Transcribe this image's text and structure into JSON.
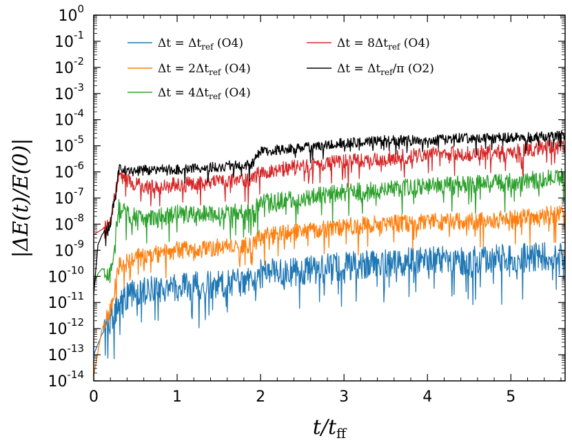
{
  "chart_data": {
    "type": "line",
    "title": "",
    "xlabel": "t/t_ff",
    "ylabel": "|ΔE(t)/E(0)|",
    "x_range": [
      0,
      5.65
    ],
    "y_scale": "log",
    "y_range_exponent": [
      -14,
      0
    ],
    "x_ticks": [
      "0",
      "1",
      "2",
      "3",
      "4",
      "5"
    ],
    "y_ticks": [
      {
        "base": "10",
        "exp": "0"
      },
      {
        "base": "10",
        "exp": "-1"
      },
      {
        "base": "10",
        "exp": "-2"
      },
      {
        "base": "10",
        "exp": "-3"
      },
      {
        "base": "10",
        "exp": "-4"
      },
      {
        "base": "10",
        "exp": "-5"
      },
      {
        "base": "10",
        "exp": "-6"
      },
      {
        "base": "10",
        "exp": "-7"
      },
      {
        "base": "10",
        "exp": "-8"
      },
      {
        "base": "10",
        "exp": "-9"
      },
      {
        "base": "10",
        "exp": "-10"
      },
      {
        "base": "10",
        "exp": "-11"
      },
      {
        "base": "10",
        "exp": "-12"
      },
      {
        "base": "10",
        "exp": "-13"
      },
      {
        "base": "10",
        "exp": "-14"
      }
    ],
    "grid": false,
    "legend": "top",
    "series": [
      {
        "name": "Δt = Δt_ref (O4)",
        "color": "#1f77b4",
        "noise": 0.55,
        "points": [
          [
            0.0,
            -13.0
          ],
          [
            0.05,
            -12.6
          ],
          [
            0.1,
            -12.2
          ],
          [
            0.2,
            -11.8
          ],
          [
            0.3,
            -11.0
          ],
          [
            0.45,
            -10.7
          ],
          [
            0.7,
            -10.5
          ],
          [
            1.0,
            -10.4
          ],
          [
            1.5,
            -10.3
          ],
          [
            1.9,
            -10.2
          ],
          [
            2.0,
            -9.9
          ],
          [
            2.5,
            -9.8
          ],
          [
            3.0,
            -9.6
          ],
          [
            3.5,
            -9.5
          ],
          [
            4.0,
            -9.4
          ],
          [
            4.5,
            -9.4
          ],
          [
            5.0,
            -9.3
          ],
          [
            5.65,
            -9.2
          ]
        ]
      },
      {
        "name": "Δt = 2Δt_ref (O4)",
        "color": "#ff7f0e",
        "noise": 0.35,
        "points": [
          [
            0.0,
            -13.8
          ],
          [
            0.05,
            -12.9
          ],
          [
            0.1,
            -12.0
          ],
          [
            0.2,
            -11.3
          ],
          [
            0.3,
            -9.6
          ],
          [
            0.45,
            -9.3
          ],
          [
            0.7,
            -9.2
          ],
          [
            1.0,
            -9.0
          ],
          [
            1.5,
            -8.9
          ],
          [
            1.9,
            -8.8
          ],
          [
            2.0,
            -8.5
          ],
          [
            2.5,
            -8.3
          ],
          [
            3.0,
            -8.1
          ],
          [
            3.5,
            -8.0
          ],
          [
            4.0,
            -7.9
          ],
          [
            4.5,
            -7.9
          ],
          [
            5.0,
            -7.8
          ],
          [
            5.65,
            -7.6
          ]
        ]
      },
      {
        "name": "Δt = 4Δt_ref (O4)",
        "color": "#2ca02c",
        "noise": 0.35,
        "points": [
          [
            0.0,
            -10.3
          ],
          [
            0.05,
            -9.9
          ],
          [
            0.1,
            -9.7
          ],
          [
            0.2,
            -9.9
          ],
          [
            0.3,
            -7.4
          ],
          [
            0.45,
            -7.7
          ],
          [
            0.7,
            -7.8
          ],
          [
            1.0,
            -7.6
          ],
          [
            1.5,
            -7.6
          ],
          [
            1.9,
            -7.5
          ],
          [
            2.0,
            -7.2
          ],
          [
            2.5,
            -7.0
          ],
          [
            3.0,
            -6.8
          ],
          [
            3.5,
            -6.7
          ],
          [
            4.0,
            -6.5
          ],
          [
            4.5,
            -6.5
          ],
          [
            5.0,
            -6.4
          ],
          [
            5.65,
            -6.2
          ]
        ]
      },
      {
        "name": "Δt = 8Δt_ref (O4)",
        "color": "#d62728",
        "noise": 0.3,
        "points": [
          [
            0.0,
            -8.4
          ],
          [
            0.05,
            -8.3
          ],
          [
            0.1,
            -8.2
          ],
          [
            0.2,
            -7.9
          ],
          [
            0.3,
            -6.1
          ],
          [
            0.45,
            -6.4
          ],
          [
            0.7,
            -6.6
          ],
          [
            1.0,
            -6.5
          ],
          [
            1.5,
            -6.4
          ],
          [
            1.9,
            -6.3
          ],
          [
            2.0,
            -6.0
          ],
          [
            2.5,
            -5.8
          ],
          [
            3.0,
            -5.6
          ],
          [
            3.5,
            -5.5
          ],
          [
            4.0,
            -5.3
          ],
          [
            4.5,
            -5.3
          ],
          [
            5.0,
            -5.2
          ],
          [
            5.65,
            -5.0
          ]
        ]
      },
      {
        "name": "Δt = Δt_ref/π (O2)",
        "color": "#000000",
        "noise": 0.2,
        "points": [
          [
            0.0,
            -10.7
          ],
          [
            0.05,
            -8.8
          ],
          [
            0.1,
            -8.4
          ],
          [
            0.2,
            -8.0
          ],
          [
            0.3,
            -5.9
          ],
          [
            0.45,
            -6.0
          ],
          [
            0.7,
            -5.9
          ],
          [
            1.0,
            -5.9
          ],
          [
            1.5,
            -5.8
          ],
          [
            1.9,
            -5.7
          ],
          [
            2.0,
            -5.2
          ],
          [
            2.5,
            -5.1
          ],
          [
            3.0,
            -4.9
          ],
          [
            3.5,
            -4.8
          ],
          [
            4.0,
            -4.8
          ],
          [
            4.5,
            -4.7
          ],
          [
            5.0,
            -4.7
          ],
          [
            5.65,
            -4.6
          ]
        ]
      }
    ],
    "legend_entries": [
      {
        "prefix": "Δt = Δt",
        "sub": "ref",
        "suffix": " (O4)",
        "color": "#1f77b4"
      },
      {
        "prefix": "Δt = 2Δt",
        "sub": "ref",
        "suffix": " (O4)",
        "color": "#ff7f0e"
      },
      {
        "prefix": "Δt = 4Δt",
        "sub": "ref",
        "suffix": " (O4)",
        "color": "#2ca02c"
      },
      {
        "prefix": "Δt = 8Δt",
        "sub": "ref",
        "suffix": " (O4)",
        "color": "#d62728"
      },
      {
        "prefix": "Δt = Δt",
        "sub": "ref",
        "suffix": "/π (O2)",
        "color": "#000000"
      }
    ],
    "axis_labels": {
      "x_main": "t/t",
      "x_sub": "ff",
      "y_main": "|ΔE(t)/E(0)|"
    }
  }
}
